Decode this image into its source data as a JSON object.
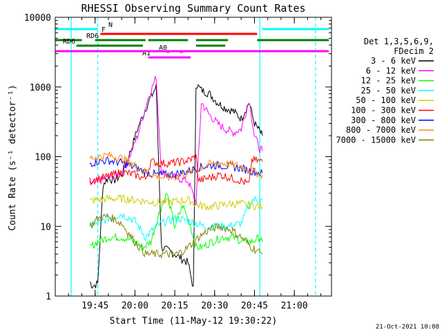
{
  "chart_data": {
    "type": "line",
    "title": "RHESSI Observing Summary Count Rates",
    "xlabel": "Start Time (11-May-12 19:30:22)",
    "ylabel": "Count Rate (s⁻¹ detector⁻¹)",
    "ylim": [
      1,
      10000
    ],
    "yscale": "log",
    "xlim": [
      "19:30",
      "21:14"
    ],
    "x_ticks": [
      "19:45",
      "20:00",
      "20:15",
      "20:30",
      "20:45",
      "21:00"
    ],
    "y_ticks": [
      "1",
      "10",
      "100",
      "1000",
      "10000"
    ],
    "legend_title": [
      "Det 1,3,5,6,9,",
      "FDecim 2"
    ],
    "legend_position": "right",
    "timestamp": "21-Oct-2021 10:08",
    "series": [
      {
        "name": "3 - 6 keV",
        "color": "#000000",
        "x": [
          "19:43",
          "19:44",
          "19:46",
          "19:48",
          "19:50",
          "19:52",
          "19:55",
          "19:58",
          "20:01",
          "20:05",
          "20:08",
          "20:10",
          "20:15",
          "20:20",
          "20:22",
          "20:23",
          "20:25",
          "20:28",
          "20:31",
          "20:34",
          "20:37",
          "20:40",
          "20:43",
          "20:45",
          "20:47",
          "20:48"
        ],
        "y": [
          1.6,
          1.4,
          1.5,
          40,
          50,
          45,
          55,
          110,
          250,
          600,
          1000,
          5,
          4,
          3,
          1.3,
          1100,
          900,
          800,
          600,
          500,
          450,
          350,
          600,
          300,
          230,
          200
        ]
      },
      {
        "name": "6 - 12 keV",
        "color": "#ff00ff",
        "x": [
          "19:43",
          "19:46",
          "19:50",
          "19:55",
          "19:58",
          "20:01",
          "20:05",
          "20:08",
          "20:10",
          "20:15",
          "20:20",
          "20:23",
          "20:25",
          "20:28",
          "20:31",
          "20:34",
          "20:37",
          "20:40",
          "20:43",
          "20:45",
          "20:47",
          "20:48"
        ],
        "y": [
          40,
          45,
          50,
          60,
          100,
          200,
          700,
          1400,
          60,
          50,
          45,
          22,
          600,
          400,
          300,
          250,
          220,
          250,
          650,
          200,
          130,
          120
        ]
      },
      {
        "name": "12 - 25 keV",
        "color": "#00ff00",
        "x": [
          "19:43",
          "19:46",
          "19:50",
          "19:55",
          "20:00",
          "20:03",
          "20:06",
          "20:09",
          "20:12",
          "20:15",
          "20:18",
          "20:21",
          "20:23",
          "20:25",
          "20:29",
          "20:33",
          "20:37",
          "20:41",
          "20:44",
          "20:47",
          "20:48"
        ],
        "y": [
          5,
          6,
          7,
          7,
          6,
          5,
          6,
          15,
          30,
          10,
          20,
          10,
          5,
          5,
          6,
          7,
          7,
          6,
          6,
          7,
          6
        ]
      },
      {
        "name": "25 - 50 keV",
        "color": "#00ffff",
        "x": [
          "19:43",
          "19:46",
          "19:50",
          "19:55",
          "20:00",
          "20:04",
          "20:08",
          "20:12",
          "20:16",
          "20:20",
          "20:23",
          "20:26",
          "20:30",
          "20:35",
          "20:40",
          "20:44",
          "20:48"
        ],
        "y": [
          10,
          11,
          13,
          15,
          12,
          7,
          10,
          12,
          13,
          12,
          11,
          10,
          10,
          10,
          11,
          24,
          24
        ]
      },
      {
        "name": "50 - 100 keV",
        "color": "#cccc00",
        "x": [
          "19:43",
          "19:46",
          "19:50",
          "19:55",
          "20:00",
          "20:04",
          "20:08",
          "20:12",
          "20:16",
          "20:20",
          "20:24",
          "20:28",
          "20:32",
          "20:36",
          "20:40",
          "20:44",
          "20:48"
        ],
        "y": [
          23,
          24,
          25,
          25,
          24,
          23,
          22,
          22,
          23,
          24,
          20,
          19,
          20,
          21,
          21,
          20,
          19
        ]
      },
      {
        "name": "100 - 300 keV",
        "color": "#ff0000",
        "x": [
          "19:43",
          "19:46",
          "19:50",
          "19:55",
          "20:00",
          "20:04",
          "20:06",
          "20:10",
          "20:15",
          "20:20",
          "20:23",
          "20:24",
          "20:28",
          "20:32",
          "20:36",
          "20:40",
          "20:43",
          "20:44",
          "20:48"
        ],
        "y": [
          45,
          48,
          52,
          60,
          55,
          48,
          85,
          80,
          82,
          88,
          100,
          45,
          50,
          55,
          50,
          45,
          40,
          90,
          85
        ]
      },
      {
        "name": "300 - 800 keV",
        "color": "#0000ff",
        "x": [
          "19:43",
          "19:46",
          "19:50",
          "19:55",
          "20:00",
          "20:04",
          "20:08",
          "20:12",
          "20:16",
          "20:20",
          "20:24",
          "20:28",
          "20:32",
          "20:36",
          "20:40",
          "20:44",
          "20:48"
        ],
        "y": [
          80,
          85,
          88,
          82,
          70,
          60,
          55,
          55,
          57,
          62,
          70,
          75,
          75,
          72,
          68,
          62,
          58
        ]
      },
      {
        "name": "800 - 7000 keV",
        "color": "#ff8c00",
        "x": [
          "19:43",
          "19:46",
          "19:50",
          "19:55",
          "20:00",
          "20:04",
          "20:08",
          "20:12",
          "20:16",
          "20:20",
          "20:24",
          "20:28",
          "20:32",
          "20:36",
          "20:40",
          "20:44",
          "20:48"
        ],
        "y": [
          95,
          100,
          105,
          95,
          75,
          60,
          52,
          50,
          52,
          58,
          68,
          78,
          82,
          78,
          72,
          62,
          55
        ]
      },
      {
        "name": "7000 - 15000 keV",
        "color": "#808000",
        "x": [
          "19:43",
          "19:46",
          "19:50",
          "19:55",
          "20:00",
          "20:04",
          "20:08",
          "20:12",
          "20:16",
          "20:20",
          "20:24",
          "20:28",
          "20:32",
          "20:36",
          "20:40",
          "20:44",
          "20:48"
        ],
        "y": [
          10,
          13,
          14,
          11,
          6,
          4,
          4,
          4,
          4,
          5,
          7,
          9,
          10,
          9,
          7,
          5,
          4
        ]
      }
    ],
    "state_bars": [
      {
        "label": "N",
        "color": "#00ffff",
        "segments": [
          [
            "19:30",
            "19:46"
          ],
          [
            "20:48",
            "21:13"
          ]
        ]
      },
      {
        "label": "F",
        "color": "#ff0000",
        "segments": [
          [
            "19:47",
            "20:46"
          ]
        ]
      },
      {
        "label": "RD6",
        "color": "#008000",
        "segments": [
          [
            "19:30",
            "19:40"
          ],
          [
            "19:45",
            "20:04"
          ],
          [
            "20:05",
            "20:20"
          ],
          [
            "20:23",
            "20:35"
          ],
          [
            "20:46",
            "21:13"
          ]
        ]
      },
      {
        "label": "RD6",
        "color": "#008000",
        "segments": [
          [
            "19:38",
            "20:03"
          ],
          [
            "20:23",
            "20:34"
          ]
        ]
      },
      {
        "label": "A1",
        "color": "#ff00ff",
        "segments": [
          [
            "20:05",
            "20:21"
          ]
        ]
      },
      {
        "label": "A0",
        "color": "#ff00ff",
        "segments": [
          [
            "20:12",
            "20:13"
          ],
          [
            "20:17",
            "20:18"
          ]
        ]
      },
      {
        "label": "",
        "color": "#ff00ff",
        "segments": [
          [
            "19:30",
            "21:13"
          ]
        ]
      }
    ],
    "vlines": [
      {
        "time": "19:36",
        "style": "solid",
        "color": "#00ffff"
      },
      {
        "time": "19:46",
        "style": "dashed",
        "color": "#00ffff"
      },
      {
        "time": "20:47",
        "style": "solid",
        "color": "#00ffff"
      },
      {
        "time": "21:08",
        "style": "dashed",
        "color": "#00ffff"
      }
    ]
  }
}
